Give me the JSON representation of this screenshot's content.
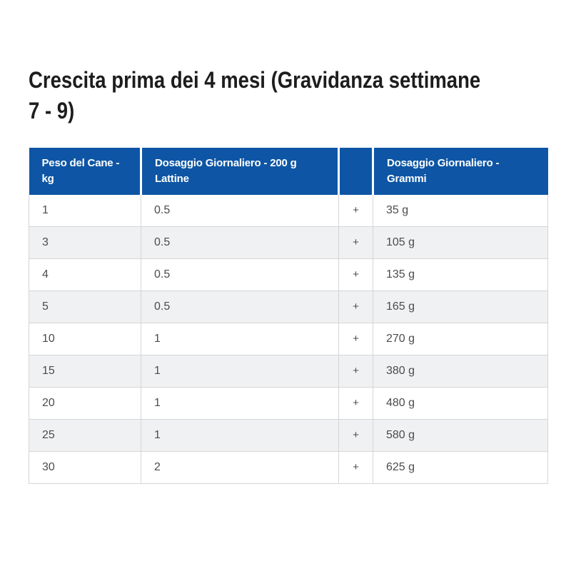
{
  "title": {
    "text": "Crescita prima dei 4 mesi (Gravidanza settimane 7 - 9)",
    "line1": "Crescita prima dei 4 mesi (Gravidanza settimane",
    "line2": "7 - 9)",
    "color": "#1d1d1d"
  },
  "table": {
    "header": {
      "col_weight": "Peso del Cane - kg",
      "col_cans": "Dosaggio Giornaliero - 200 g Lattine",
      "col_plus": "",
      "col_grams": "Dosaggio Giornaliero - Grammi"
    },
    "rows": [
      {
        "weight": "1",
        "cans": "0.5",
        "plus": "+",
        "grams": "35 g"
      },
      {
        "weight": "3",
        "cans": "0.5",
        "plus": "+",
        "grams": "105 g"
      },
      {
        "weight": "4",
        "cans": "0.5",
        "plus": "+",
        "grams": "135 g"
      },
      {
        "weight": "5",
        "cans": "0.5",
        "plus": "+",
        "grams": "165 g"
      },
      {
        "weight": "10",
        "cans": "1",
        "plus": "+",
        "grams": "270 g"
      },
      {
        "weight": "15",
        "cans": "1",
        "plus": "+",
        "grams": "380 g"
      },
      {
        "weight": "20",
        "cans": "1",
        "plus": "+",
        "grams": "480 g"
      },
      {
        "weight": "25",
        "cans": "1",
        "plus": "+",
        "grams": "580 g"
      },
      {
        "weight": "30",
        "cans": "2",
        "plus": "+",
        "grams": "625 g"
      }
    ],
    "colors": {
      "header_bg": "#0e56a5",
      "header_text": "#ffffff",
      "stripe_bg": "#f0f1f2",
      "border": "#d5d5d5",
      "body_text": "#4c4c4c"
    }
  }
}
